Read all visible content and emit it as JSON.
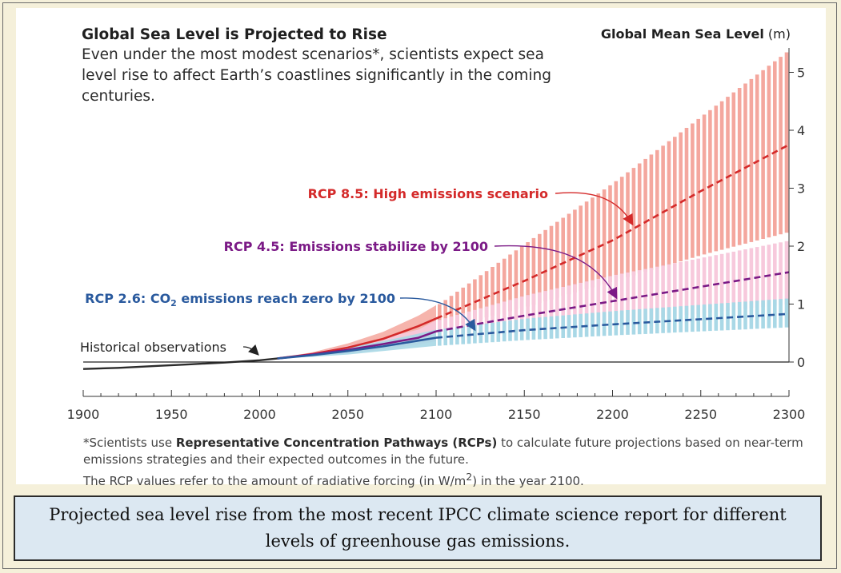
{
  "chart_data": {
    "type": "area",
    "title": "Global Sea Level is Projected to Rise",
    "subtitle": "Even under the most modest scenarios*, scientists expect sea level rise to affect Earth’s coastlines significantly in the coming centuries.",
    "ylabel_bold": "Global Mean Sea Level",
    "ylabel_unit": "(m)",
    "xlim": [
      1900,
      2300
    ],
    "ylim": [
      -0.6,
      5.5
    ],
    "x_ticks": [
      1900,
      1950,
      2000,
      2050,
      2100,
      2150,
      2200,
      2250,
      2300
    ],
    "x_tick_labels": [
      "1900",
      "1950",
      "2000",
      "2050",
      "2100",
      "2150",
      "2200",
      "2250",
      "2300"
    ],
    "y_ticks": [
      0,
      1,
      2,
      3,
      4,
      5
    ],
    "y_tick_labels": [
      "0",
      "1",
      "2",
      "3",
      "4",
      "5"
    ],
    "grid": false,
    "historical": {
      "name": "Historical observations",
      "x": [
        1900,
        1920,
        1940,
        1960,
        1980,
        2000,
        2010
      ],
      "y": [
        -0.12,
        -0.1,
        -0.07,
        -0.04,
        -0.01,
        0.03,
        0.06
      ]
    },
    "series": [
      {
        "name": "RCP 8.5: High emissions scenario",
        "color": "#d42a2a",
        "band_color": "#f4a79e",
        "x": [
          2010,
          2030,
          2050,
          2070,
          2090,
          2100,
          2150,
          2200,
          2250,
          2300
        ],
        "y": [
          0.06,
          0.14,
          0.25,
          0.4,
          0.62,
          0.75,
          1.4,
          2.1,
          2.95,
          3.75
        ],
        "lower": [
          0.06,
          0.11,
          0.18,
          0.29,
          0.45,
          0.55,
          0.95,
          1.4,
          1.85,
          2.25
        ],
        "upper": [
          0.06,
          0.17,
          0.32,
          0.52,
          0.8,
          0.98,
          2.05,
          3.1,
          4.25,
          5.4
        ]
      },
      {
        "name": "RCP 4.5: Emissions stabilize by 2100",
        "color": "#7b1a86",
        "band_color": "#f7c9dc",
        "x": [
          2010,
          2030,
          2050,
          2070,
          2090,
          2100,
          2150,
          2200,
          2250,
          2300
        ],
        "y": [
          0.06,
          0.13,
          0.21,
          0.31,
          0.42,
          0.53,
          0.8,
          1.05,
          1.3,
          1.55
        ],
        "lower": [
          0.06,
          0.1,
          0.15,
          0.22,
          0.3,
          0.36,
          0.52,
          0.68,
          0.84,
          1.0
        ],
        "upper": [
          0.06,
          0.16,
          0.28,
          0.41,
          0.56,
          0.72,
          1.15,
          1.5,
          1.8,
          2.1
        ]
      },
      {
        "name_prefix": "RCP 2.6: CO",
        "name_sub": "2",
        "name_suffix": " emissions reach zero by 2100",
        "color": "#2a5a9e",
        "band_color": "#a9d8e6",
        "x": [
          2010,
          2030,
          2050,
          2070,
          2090,
          2100,
          2150,
          2200,
          2250,
          2300
        ],
        "y": [
          0.06,
          0.12,
          0.19,
          0.27,
          0.37,
          0.42,
          0.55,
          0.65,
          0.74,
          0.83
        ],
        "lower": [
          0.06,
          0.09,
          0.13,
          0.19,
          0.25,
          0.28,
          0.38,
          0.46,
          0.53,
          0.6
        ],
        "upper": [
          0.06,
          0.15,
          0.25,
          0.36,
          0.49,
          0.56,
          0.75,
          0.88,
          0.99,
          1.1
        ]
      }
    ],
    "footnote_lead": "*Scientists use ",
    "footnote_bold": "Representative Concentration Pathways (RCPs)",
    "footnote_rest": " to calculate future projections based on near-term emissions strategies and their expected outcomes in the future.",
    "footnote_line2_a": "The RCP values refer to the amount of radiative forcing (in W/m",
    "footnote_line2_sup": "2",
    "footnote_line2_b": ") in the year 2100."
  },
  "caption": "Projected sea level rise from the most recent IPCC climate science report for different levels of greenhouse gas emissions."
}
